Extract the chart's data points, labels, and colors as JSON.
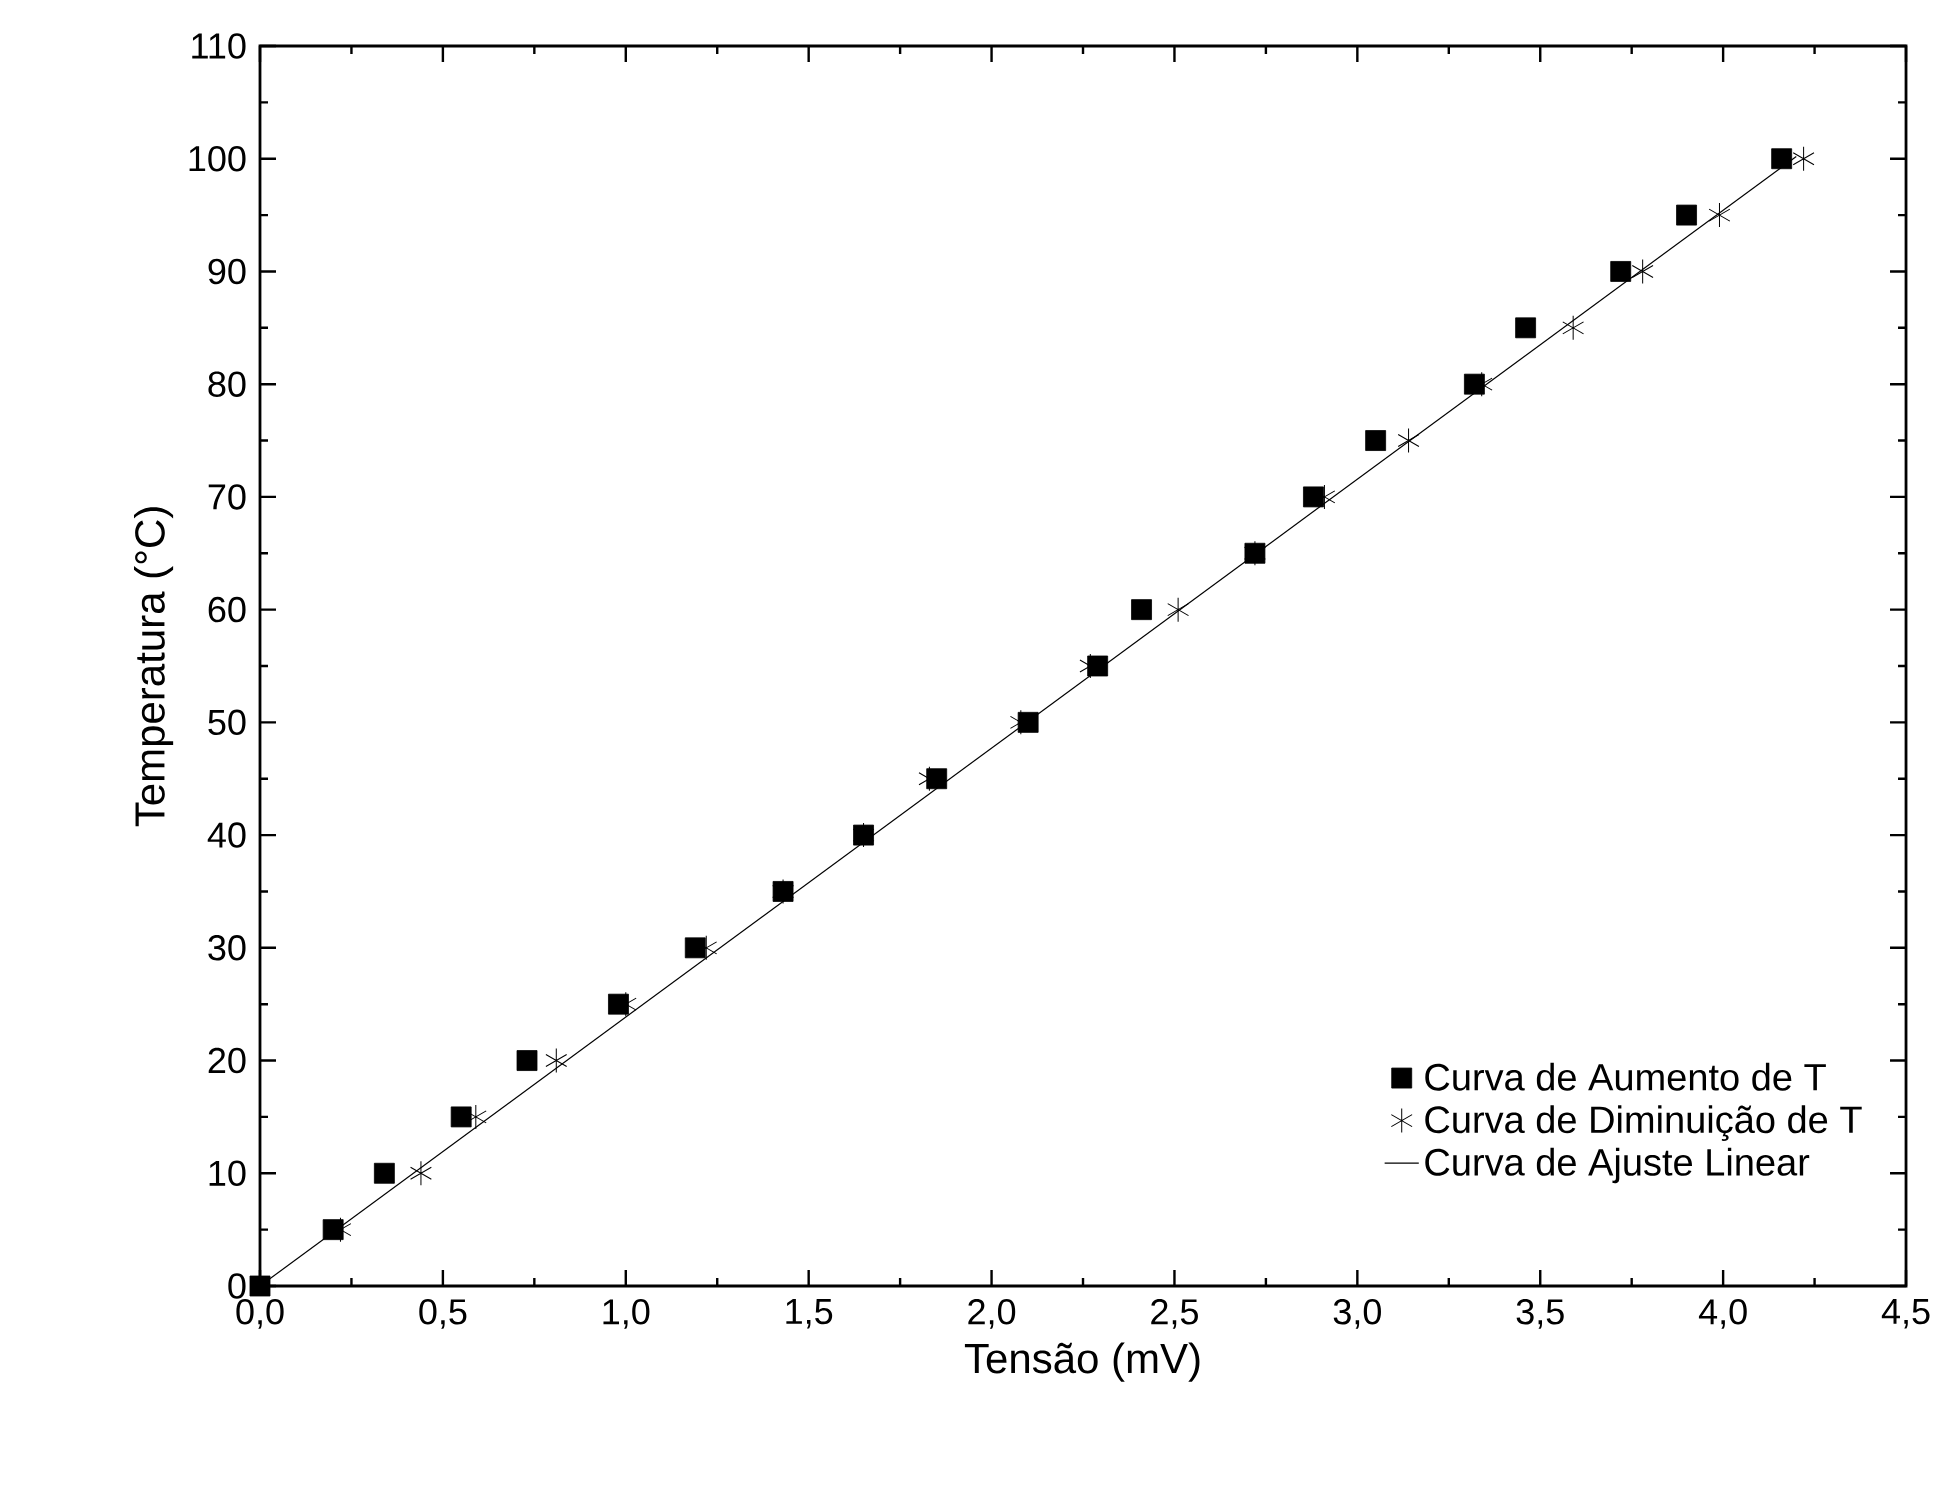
{
  "chart_data": {
    "type": "scatter",
    "xlabel": "Tensão (mV)",
    "ylabel": "Temperatura (°C)",
    "xlim": [
      0,
      4.5
    ],
    "ylim": [
      0,
      110
    ],
    "xticks": [
      {
        "value": 0,
        "label": "0,0"
      },
      {
        "value": 0.5,
        "label": "0,5"
      },
      {
        "value": 1,
        "label": "1,0"
      },
      {
        "value": 1.5,
        "label": "1,5"
      },
      {
        "value": 2,
        "label": "2,0"
      },
      {
        "value": 2.5,
        "label": "2,5"
      },
      {
        "value": 3,
        "label": "3,0"
      },
      {
        "value": 3.5,
        "label": "3,5"
      },
      {
        "value": 4,
        "label": "4,0"
      },
      {
        "value": 4.5,
        "label": "4,5"
      }
    ],
    "yticks": [
      0,
      10,
      20,
      30,
      40,
      50,
      60,
      70,
      80,
      90,
      100,
      110
    ],
    "legend": "bottom right",
    "grid": false,
    "series": [
      {
        "name": "Curva de Aumento de T",
        "color": "#000000",
        "marker": "square",
        "x": [
          0,
          0.2,
          0.34,
          0.55,
          0.73,
          0.98,
          1.19,
          1.43,
          1.65,
          1.85,
          2.1,
          2.29,
          2.41,
          2.72,
          2.88,
          3.05,
          3.32,
          3.46,
          3.72,
          3.9,
          4.16
        ],
        "values": [
          0,
          5,
          10,
          15,
          20,
          25,
          30,
          35,
          40,
          45,
          50,
          55,
          60,
          65,
          70,
          75,
          80,
          85,
          90,
          95,
          100
        ]
      },
      {
        "name": "Curva de Diminuição de T",
        "color": "#000000",
        "marker": "cross",
        "x": [
          0.22,
          0.44,
          0.59,
          0.81,
          1.0,
          1.22,
          1.43,
          1.65,
          1.83,
          2.08,
          2.27,
          2.51,
          2.72,
          2.91,
          3.14,
          3.34,
          3.59,
          3.78,
          3.99,
          4.22
        ],
        "values": [
          5,
          10,
          15,
          20,
          25,
          30,
          35,
          40,
          45,
          50,
          55,
          60,
          65,
          70,
          75,
          80,
          85,
          90,
          95,
          100
        ]
      },
      {
        "name": "Curva de Ajuste Linear",
        "type": "line",
        "color": "#000000",
        "marker": "none",
        "line_style": "solid",
        "x": [
          0,
          4.2
        ],
        "values": [
          0,
          100.2
        ]
      }
    ]
  }
}
